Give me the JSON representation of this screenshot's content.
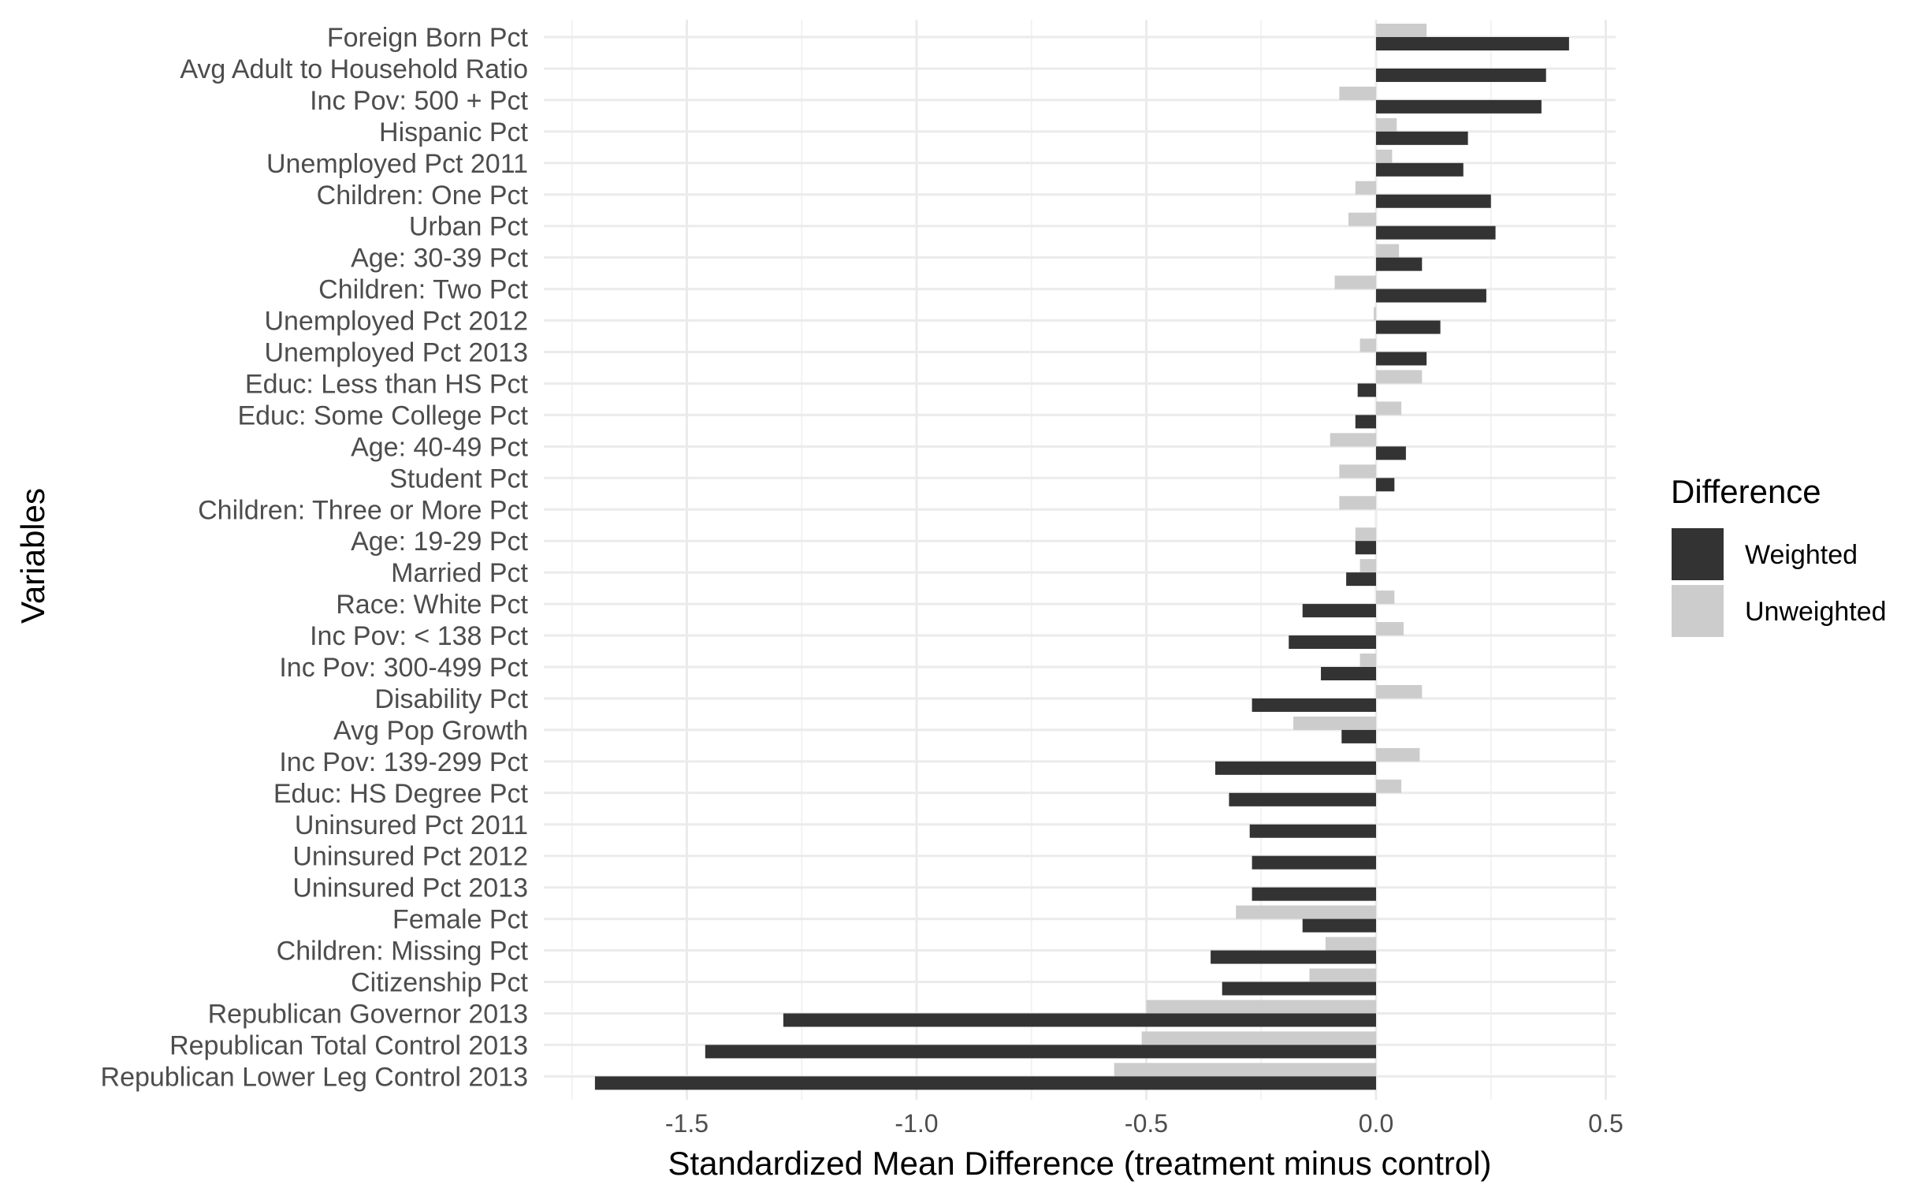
{
  "chart_data": {
    "type": "bar",
    "orientation": "horizontal",
    "xlabel": "Standardized Mean Difference (treatment minus control)",
    "ylabel": "Variables",
    "xlim": [
      -1.77,
      0.53
    ],
    "xticks": [
      -1.5,
      -1.0,
      -0.5,
      0.0,
      0.5
    ],
    "xtick_labels": [
      "-1.5",
      "-1.0",
      "-0.5",
      "0.0",
      "0.5"
    ],
    "grid": true,
    "legend": {
      "title": "Difference",
      "placement": "right",
      "entries": [
        {
          "label": "Weighted",
          "color": "#333333"
        },
        {
          "label": "Unweighted",
          "color": "#cccccc"
        }
      ]
    },
    "categories": [
      "Foreign Born Pct",
      "Avg Adult to Household Ratio",
      "Inc Pov: 500 + Pct",
      "Hispanic Pct",
      "Unemployed Pct 2011",
      "Children: One Pct",
      "Urban Pct",
      "Age: 30-39 Pct",
      "Children: Two Pct",
      "Unemployed Pct 2012",
      "Unemployed Pct 2013",
      "Educ: Less than HS Pct",
      "Educ: Some College Pct",
      "Age: 40-49 Pct",
      "Student Pct",
      "Children: Three or More Pct",
      "Age: 19-29 Pct",
      "Married Pct",
      "Race: White Pct",
      "Inc Pov: < 138 Pct",
      "Inc Pov: 300-499 Pct",
      "Disability Pct",
      "Avg Pop Growth",
      "Inc Pov: 139-299 Pct",
      "Educ: HS Degree Pct",
      "Uninsured Pct 2011",
      "Uninsured Pct 2012",
      "Uninsured Pct 2013",
      "Female Pct",
      "Children: Missing Pct",
      "Citizenship Pct",
      "Republican Governor 2013",
      "Republican Total Control 2013",
      "Republican Lower Leg Control 2013"
    ],
    "series": [
      {
        "name": "Weighted",
        "color": "#333333",
        "values": [
          0.42,
          0.37,
          0.36,
          0.2,
          0.19,
          0.25,
          0.26,
          0.1,
          0.24,
          0.14,
          0.11,
          -0.04,
          -0.045,
          0.065,
          0.04,
          0.0,
          -0.045,
          -0.065,
          -0.16,
          -0.19,
          -0.12,
          -0.27,
          -0.075,
          -0.35,
          -0.32,
          -0.275,
          -0.27,
          -0.27,
          -0.16,
          -0.36,
          -0.335,
          -1.29,
          -1.46,
          -1.7
        ]
      },
      {
        "name": "Unweighted",
        "color": "#cccccc",
        "values": [
          0.11,
          0.0,
          -0.08,
          0.045,
          0.035,
          -0.045,
          -0.06,
          0.05,
          -0.09,
          -0.005,
          -0.035,
          0.1,
          0.055,
          -0.1,
          -0.08,
          -0.08,
          -0.045,
          -0.035,
          0.04,
          0.06,
          -0.035,
          0.1,
          -0.18,
          0.095,
          0.055,
          0.0,
          0.0,
          0.0,
          -0.305,
          -0.11,
          -0.145,
          -0.5,
          -0.51,
          -0.57
        ]
      }
    ]
  }
}
